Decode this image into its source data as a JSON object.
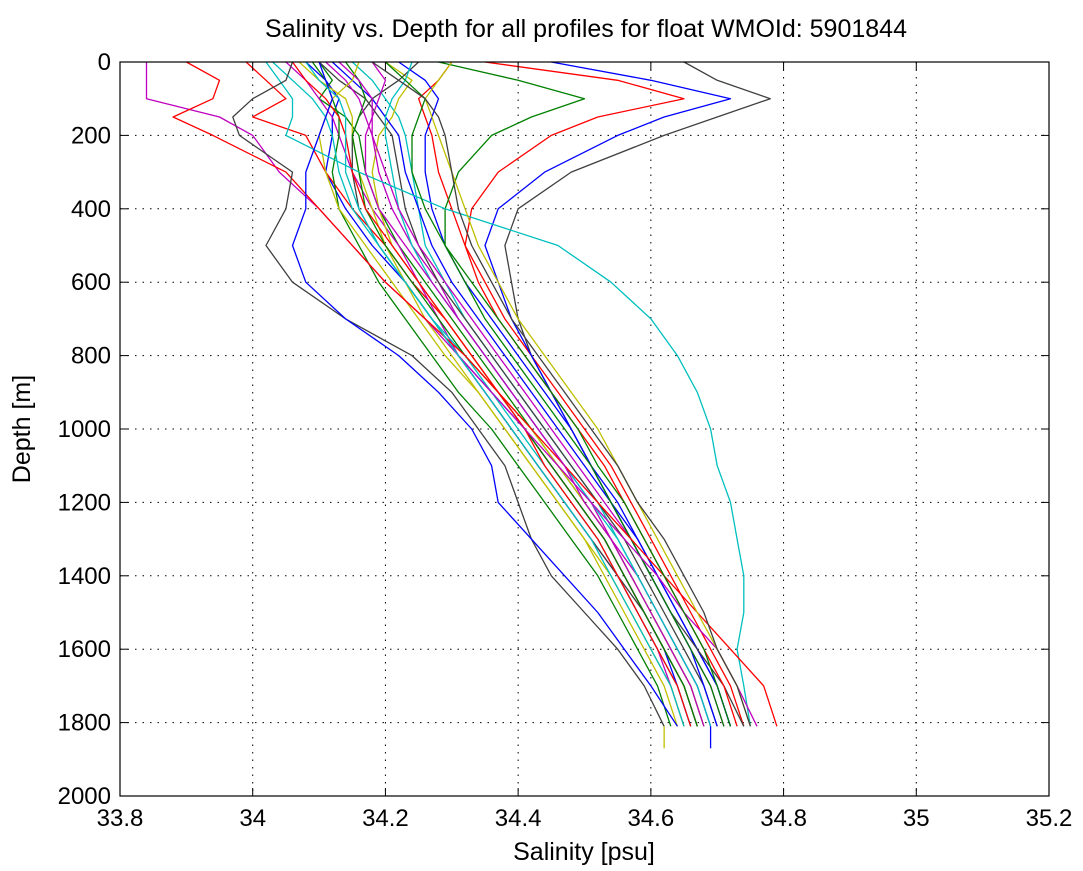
{
  "chart_data": {
    "type": "line",
    "title": "Salinity vs. Depth for all profiles for float WMOId: 5901844",
    "xlabel": "Salinity [psu]",
    "ylabel": "Depth [m]",
    "xlim": [
      33.8,
      35.2
    ],
    "ylim": [
      0,
      2000
    ],
    "y_reversed": true,
    "grid": true,
    "legend": "none",
    "x_ticks": [
      "33.8",
      "34",
      "34.2",
      "34.4",
      "34.6",
      "34.8",
      "35",
      "35.2"
    ],
    "y_ticks": [
      "0",
      "200",
      "400",
      "600",
      "800",
      "1000",
      "1200",
      "1400",
      "1600",
      "1800",
      "2000"
    ],
    "colors": [
      "#0000ff",
      "#008000",
      "#ff0000",
      "#00bfbf",
      "#bf00bf",
      "#bfbf00",
      "#404040"
    ],
    "depth_levels": [
      0,
      50,
      100,
      150,
      200,
      300,
      400,
      500,
      600,
      700,
      800,
      900,
      1000,
      1100,
      1200,
      1300,
      1400,
      1500,
      1600,
      1700,
      1810
    ],
    "series": [
      {
        "color": "#0000ff",
        "values": [
          34.08,
          34.11,
          34.13,
          34.12,
          34.12,
          34.11,
          34.14,
          34.18,
          34.23,
          34.27,
          34.31,
          34.36,
          34.41,
          34.45,
          34.49,
          34.53,
          34.56,
          34.59,
          34.62,
          34.64,
          34.66
        ]
      },
      {
        "color": "#008000",
        "values": [
          34.1,
          34.12,
          34.1,
          34.14,
          34.16,
          34.17,
          34.19,
          34.22,
          34.26,
          34.3,
          34.34,
          34.38,
          34.42,
          34.46,
          34.5,
          34.54,
          34.57,
          34.6,
          34.63,
          34.66,
          34.68
        ]
      },
      {
        "color": "#ff0000",
        "values": [
          33.99,
          34.02,
          34.05,
          34.0,
          34.08,
          34.11,
          34.15,
          34.2,
          34.24,
          34.29,
          34.33,
          34.37,
          34.41,
          34.45,
          34.49,
          34.53,
          34.56,
          34.59,
          34.62,
          34.65,
          34.67
        ]
      },
      {
        "color": "#00bfbf",
        "values": [
          34.15,
          34.18,
          34.2,
          34.22,
          34.23,
          34.24,
          34.25,
          34.26,
          34.29,
          34.32,
          34.36,
          34.4,
          34.44,
          34.48,
          34.52,
          34.55,
          34.58,
          34.61,
          34.64,
          34.67,
          34.69
        ]
      },
      {
        "color": "#bf00bf",
        "values": [
          34.05,
          34.08,
          34.1,
          34.12,
          34.13,
          34.15,
          34.18,
          34.22,
          34.25,
          34.28,
          34.31,
          34.35,
          34.39,
          34.43,
          34.47,
          34.51,
          34.55,
          34.58,
          34.61,
          34.63,
          34.65
        ]
      },
      {
        "color": "#bfbf00",
        "values": [
          34.2,
          34.24,
          34.22,
          34.21,
          34.19,
          34.18,
          34.19,
          34.21,
          34.25,
          34.29,
          34.33,
          34.37,
          34.42,
          34.46,
          34.5,
          34.54,
          34.57,
          34.6,
          34.63,
          34.66,
          34.68
        ]
      },
      {
        "color": "#404040",
        "values": [
          34.25,
          34.22,
          34.18,
          34.16,
          34.15,
          34.15,
          34.16,
          34.19,
          34.23,
          34.27,
          34.31,
          34.35,
          34.39,
          34.43,
          34.47,
          34.51,
          34.55,
          34.59,
          34.62,
          34.65,
          34.67
        ]
      },
      {
        "color": "#0000ff",
        "values": [
          34.12,
          34.15,
          34.18,
          34.2,
          34.22,
          34.23,
          34.25,
          34.27,
          34.3,
          34.34,
          34.38,
          34.42,
          34.46,
          34.5,
          34.54,
          34.58,
          34.61,
          34.64,
          34.67,
          34.7,
          34.72
        ]
      },
      {
        "color": "#008000",
        "values": [
          34.09,
          34.11,
          34.12,
          34.13,
          34.13,
          34.12,
          34.13,
          34.16,
          34.19,
          34.23,
          34.27,
          34.31,
          34.36,
          34.4,
          34.44,
          34.48,
          34.52,
          34.55,
          34.58,
          34.61,
          34.63
        ]
      },
      {
        "color": "#ff0000",
        "values": [
          34.3,
          34.28,
          34.25,
          34.26,
          34.27,
          34.28,
          34.3,
          34.32,
          34.35,
          34.38,
          34.42,
          34.46,
          34.5,
          34.54,
          34.57,
          34.6,
          34.63,
          34.66,
          34.69,
          34.72,
          34.74
        ]
      },
      {
        "color": "#00bfbf",
        "values": [
          34.03,
          34.06,
          34.09,
          34.11,
          34.12,
          34.13,
          34.15,
          34.19,
          34.23,
          34.27,
          34.32,
          34.36,
          34.4,
          34.44,
          34.48,
          34.52,
          34.55,
          34.58,
          34.61,
          34.64,
          34.66
        ]
      },
      {
        "color": "#bf00bf",
        "values": [
          34.18,
          34.2,
          34.19,
          34.18,
          34.18,
          34.19,
          34.21,
          34.24,
          34.28,
          34.31,
          34.35,
          34.39,
          34.43,
          34.47,
          34.51,
          34.54,
          34.58,
          34.61,
          34.64,
          34.67,
          34.69
        ]
      },
      {
        "color": "#bfbf00",
        "values": [
          34.07,
          34.1,
          34.14,
          34.15,
          34.15,
          34.16,
          34.18,
          34.2,
          34.23,
          34.26,
          34.3,
          34.34,
          34.38,
          34.42,
          34.46,
          34.5,
          34.53,
          34.56,
          34.59,
          34.62,
          34.64
        ]
      },
      {
        "color": "#404040",
        "values": [
          34.1,
          34.13,
          34.17,
          34.19,
          34.21,
          34.22,
          34.23,
          34.25,
          34.28,
          34.32,
          34.36,
          34.4,
          34.44,
          34.48,
          34.52,
          34.56,
          34.59,
          34.62,
          34.65,
          34.68,
          34.7
        ]
      },
      {
        "color": "#0000ff",
        "values": [
          34.22,
          34.26,
          34.28,
          34.27,
          34.26,
          34.26,
          34.27,
          34.29,
          34.32,
          34.36,
          34.4,
          34.44,
          34.48,
          34.51,
          34.55,
          34.58,
          34.61,
          34.64,
          34.67,
          34.7,
          34.72
        ]
      },
      {
        "color": "#008000",
        "values": [
          34.14,
          34.16,
          34.17,
          34.16,
          34.15,
          34.16,
          34.17,
          34.2,
          34.24,
          34.28,
          34.32,
          34.37,
          34.41,
          34.45,
          34.49,
          34.53,
          34.56,
          34.59,
          34.62,
          34.65,
          34.67
        ]
      },
      {
        "color": "#ff0000",
        "values": [
          34.06,
          34.08,
          34.11,
          34.13,
          34.14,
          34.15,
          34.17,
          34.21,
          34.25,
          34.29,
          34.33,
          34.37,
          34.41,
          34.44,
          34.48,
          34.52,
          34.55,
          34.58,
          34.61,
          34.64,
          34.66
        ]
      },
      {
        "color": "#00bfbf",
        "values": [
          34.24,
          34.23,
          34.21,
          34.2,
          34.2,
          34.21,
          34.22,
          34.24,
          34.27,
          34.31,
          34.35,
          34.39,
          34.43,
          34.47,
          34.51,
          34.55,
          34.58,
          34.61,
          34.64,
          34.67,
          34.69
        ]
      },
      {
        "color": "#bf00bf",
        "values": [
          34.11,
          34.14,
          34.16,
          34.17,
          34.18,
          34.2,
          34.22,
          34.25,
          34.29,
          34.33,
          34.37,
          34.41,
          34.45,
          34.49,
          34.53,
          34.57,
          34.6,
          34.63,
          34.66,
          34.69,
          34.71
        ]
      },
      {
        "color": "#bfbf00",
        "values": [
          34.16,
          34.15,
          34.12,
          34.11,
          34.1,
          34.11,
          34.13,
          34.17,
          34.21,
          34.25,
          34.29,
          34.34,
          34.38,
          34.42,
          34.46,
          34.5,
          34.54,
          34.57,
          34.6,
          34.63,
          34.65
        ]
      },
      {
        "color": "#404040",
        "values": [
          34.65,
          34.7,
          34.78,
          34.7,
          34.62,
          34.48,
          34.4,
          34.38,
          34.39,
          34.4,
          34.42,
          34.45,
          34.48,
          34.51,
          34.54,
          34.57,
          34.6,
          34.63,
          34.67,
          34.71,
          34.74
        ]
      },
      {
        "color": "#0000ff",
        "values": [
          34.45,
          34.6,
          34.72,
          34.62,
          34.55,
          34.44,
          34.37,
          34.35,
          34.37,
          34.39,
          34.42,
          34.45,
          34.48,
          34.51,
          34.54,
          34.57,
          34.6,
          34.63,
          34.66,
          34.68,
          34.7
        ]
      },
      {
        "color": "#ff0000",
        "values": [
          34.35,
          34.55,
          34.65,
          34.52,
          34.45,
          34.37,
          34.33,
          34.32,
          34.34,
          34.37,
          34.41,
          34.45,
          34.49,
          34.53,
          34.56,
          34.59,
          34.62,
          34.65,
          34.68,
          34.71,
          34.73
        ]
      },
      {
        "color": "#008000",
        "values": [
          34.28,
          34.4,
          34.5,
          34.42,
          34.36,
          34.31,
          34.29,
          34.29,
          34.32,
          34.35,
          34.39,
          34.43,
          34.47,
          34.51,
          34.54,
          34.57,
          34.6,
          34.63,
          34.66,
          34.69,
          34.71
        ]
      },
      {
        "color": "#00bfbf",
        "values": [
          34.02,
          34.04,
          34.06,
          34.06,
          34.05,
          34.16,
          34.29,
          34.46,
          34.54,
          34.6,
          34.64,
          34.67,
          34.69,
          34.7,
          34.72,
          34.73,
          34.74,
          34.74,
          34.73,
          34.74,
          34.75
        ]
      },
      {
        "color": "#bf00bf",
        "values": [
          33.84,
          33.84,
          33.84,
          33.95,
          34.0,
          34.04,
          34.1,
          34.15,
          34.2,
          34.26,
          34.31,
          34.36,
          34.41,
          34.46,
          34.51,
          34.56,
          34.61,
          34.65,
          34.7,
          34.73,
          34.76
        ]
      },
      {
        "color": "#ff0000",
        "values": [
          33.9,
          33.95,
          33.94,
          33.88,
          33.94,
          34.05,
          34.1,
          34.15,
          34.2,
          34.26,
          34.32,
          34.37,
          34.42,
          34.47,
          34.52,
          34.57,
          34.62,
          34.67,
          34.72,
          34.77,
          34.79
        ]
      },
      {
        "color": "#404040",
        "values": [
          34.06,
          34.05,
          34.0,
          33.97,
          33.98,
          34.06,
          34.05,
          34.02,
          34.06,
          34.14,
          34.24,
          34.3,
          34.34,
          34.38,
          34.4,
          34.42,
          34.45,
          34.5,
          34.55,
          34.59,
          34.62
        ]
      },
      {
        "color": "#0000ff",
        "values": [
          34.1,
          34.11,
          34.12,
          34.11,
          34.1,
          34.08,
          34.08,
          34.06,
          34.08,
          34.14,
          34.22,
          34.28,
          34.33,
          34.36,
          34.37,
          34.42,
          34.47,
          34.52,
          34.56,
          34.6,
          34.64
        ]
      },
      {
        "color": "#bfbf00",
        "values": [
          34.3,
          34.28,
          34.26,
          34.27,
          34.28,
          34.3,
          34.32,
          34.34,
          34.37,
          34.4,
          34.44,
          34.48,
          34.52,
          34.55,
          34.58,
          34.61,
          34.64,
          34.67,
          34.7,
          34.73,
          34.75
        ]
      },
      {
        "color": "#008000",
        "values": [
          34.2,
          34.23,
          34.26,
          34.25,
          34.24,
          34.24,
          34.26,
          34.29,
          34.33,
          34.37,
          34.41,
          34.45,
          34.49,
          34.52,
          34.56,
          34.59,
          34.62,
          34.65,
          34.68,
          34.7,
          34.72
        ]
      },
      {
        "color": "#bf00bf",
        "values": [
          34.13,
          34.16,
          34.18,
          34.18,
          34.17,
          34.17,
          34.19,
          34.23,
          34.27,
          34.31,
          34.35,
          34.39,
          34.43,
          34.47,
          34.5,
          34.54,
          34.57,
          34.6,
          34.63,
          34.66,
          34.68
        ]
      },
      {
        "color": "#404040",
        "values": [
          34.18,
          34.22,
          34.26,
          34.28,
          34.29,
          34.3,
          34.31,
          34.33,
          34.36,
          34.39,
          34.43,
          34.47,
          34.51,
          34.55,
          34.58,
          34.62,
          34.65,
          34.68,
          34.7,
          34.73,
          34.75
        ]
      },
      {
        "color": "#00bfbf",
        "values": [
          34.08,
          34.1,
          34.13,
          34.14,
          34.14,
          34.14,
          34.16,
          34.19,
          34.23,
          34.27,
          34.31,
          34.35,
          34.39,
          34.43,
          34.47,
          34.51,
          34.54,
          34.57,
          34.6,
          34.63,
          34.65
        ]
      }
    ],
    "extra_points": [
      {
        "color": "#bfbf00",
        "x": 34.62,
        "y": 1870
      },
      {
        "color": "#0000ff",
        "x": 34.69,
        "y": 1870
      }
    ]
  }
}
